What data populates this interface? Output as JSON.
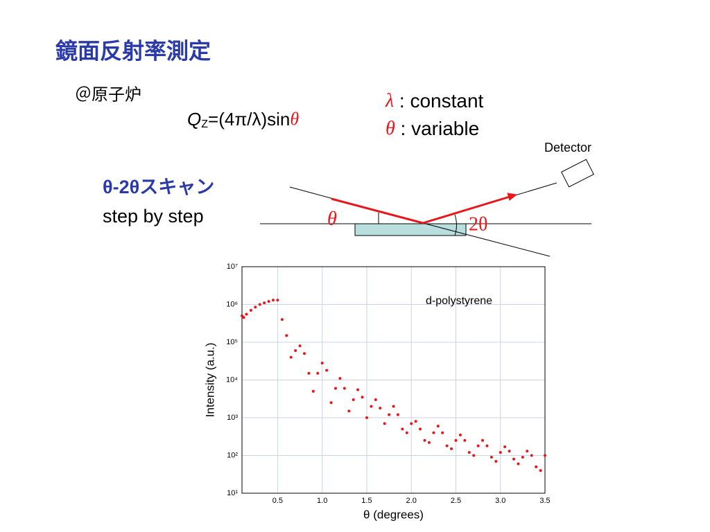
{
  "title": "鏡面反射率測定",
  "location": "＠原子炉",
  "formula": {
    "q": "Q",
    "sub": "Z",
    "rest": "=(4π/λ)sin",
    "theta": "θ"
  },
  "params": [
    {
      "symbol": "λ",
      "text": " : constant"
    },
    {
      "symbol": "θ",
      "text": " : variable"
    }
  ],
  "scan": {
    "title": "θ-2θスキャン",
    "subtitle": "step by step"
  },
  "diagram": {
    "detector": "Detector",
    "angle_in": "θ",
    "angle_out": "2θ"
  },
  "chart_data": {
    "type": "scatter",
    "annotation": "d-polystyrene",
    "xlabel": "θ (degrees)",
    "ylabel": "Intensity (a.u.)",
    "color": "#e8161b",
    "ylog": true,
    "grid": true,
    "xlim": [
      0.1,
      3.5
    ],
    "ylim": [
      10,
      10000000
    ],
    "xticks": [
      {
        "value": 0.5,
        "label": "0.5"
      },
      {
        "value": 1,
        "label": "1.0"
      },
      {
        "value": 1.5,
        "label": "1.5"
      },
      {
        "value": 2,
        "label": "2.0"
      },
      {
        "value": 2.5,
        "label": "2.5"
      },
      {
        "value": 3,
        "label": "3.0"
      },
      {
        "value": 3.5,
        "label": "3.5"
      }
    ],
    "yticks": [
      {
        "value": 10,
        "label": "10¹"
      },
      {
        "value": 100,
        "label": "10²"
      },
      {
        "value": 1000,
        "label": "10³"
      },
      {
        "value": 10000,
        "label": "10⁴"
      },
      {
        "value": 100000,
        "label": "10⁵"
      },
      {
        "value": 1000000,
        "label": "10⁶"
      },
      {
        "value": 10000000,
        "label": "10⁷"
      }
    ],
    "x": [
      0.1,
      0.12,
      0.15,
      0.2,
      0.25,
      0.3,
      0.35,
      0.4,
      0.45,
      0.5,
      0.55,
      0.6,
      0.65,
      0.7,
      0.75,
      0.8,
      0.85,
      0.9,
      0.95,
      1.0,
      1.05,
      1.1,
      1.15,
      1.2,
      1.25,
      1.3,
      1.35,
      1.4,
      1.45,
      1.5,
      1.55,
      1.6,
      1.65,
      1.7,
      1.75,
      1.8,
      1.85,
      1.9,
      1.95,
      2.0,
      2.05,
      2.1,
      2.15,
      2.2,
      2.25,
      2.3,
      2.35,
      2.4,
      2.45,
      2.5,
      2.55,
      2.6,
      2.65,
      2.7,
      2.75,
      2.8,
      2.85,
      2.9,
      2.95,
      3.0,
      3.05,
      3.1,
      3.15,
      3.2,
      3.25,
      3.3,
      3.35,
      3.4,
      3.45,
      3.5
    ],
    "values": [
      500000,
      450000,
      550000,
      700000,
      850000,
      1000000,
      1100000,
      1200000,
      1300000,
      1300000,
      400000,
      150000,
      40000,
      60000,
      80000,
      50000,
      15000,
      5000,
      15000,
      28000,
      18000,
      2500,
      6000,
      11000,
      6000,
      1500,
      3000,
      5500,
      3500,
      1000,
      2000,
      3000,
      1800,
      700,
      1200,
      2000,
      1200,
      500,
      400,
      700,
      800,
      500,
      250,
      220,
      400,
      600,
      400,
      180,
      150,
      250,
      350,
      250,
      120,
      100,
      180,
      250,
      180,
      90,
      70,
      120,
      170,
      130,
      80,
      60,
      90,
      130,
      100,
      50,
      40,
      100
    ]
  }
}
